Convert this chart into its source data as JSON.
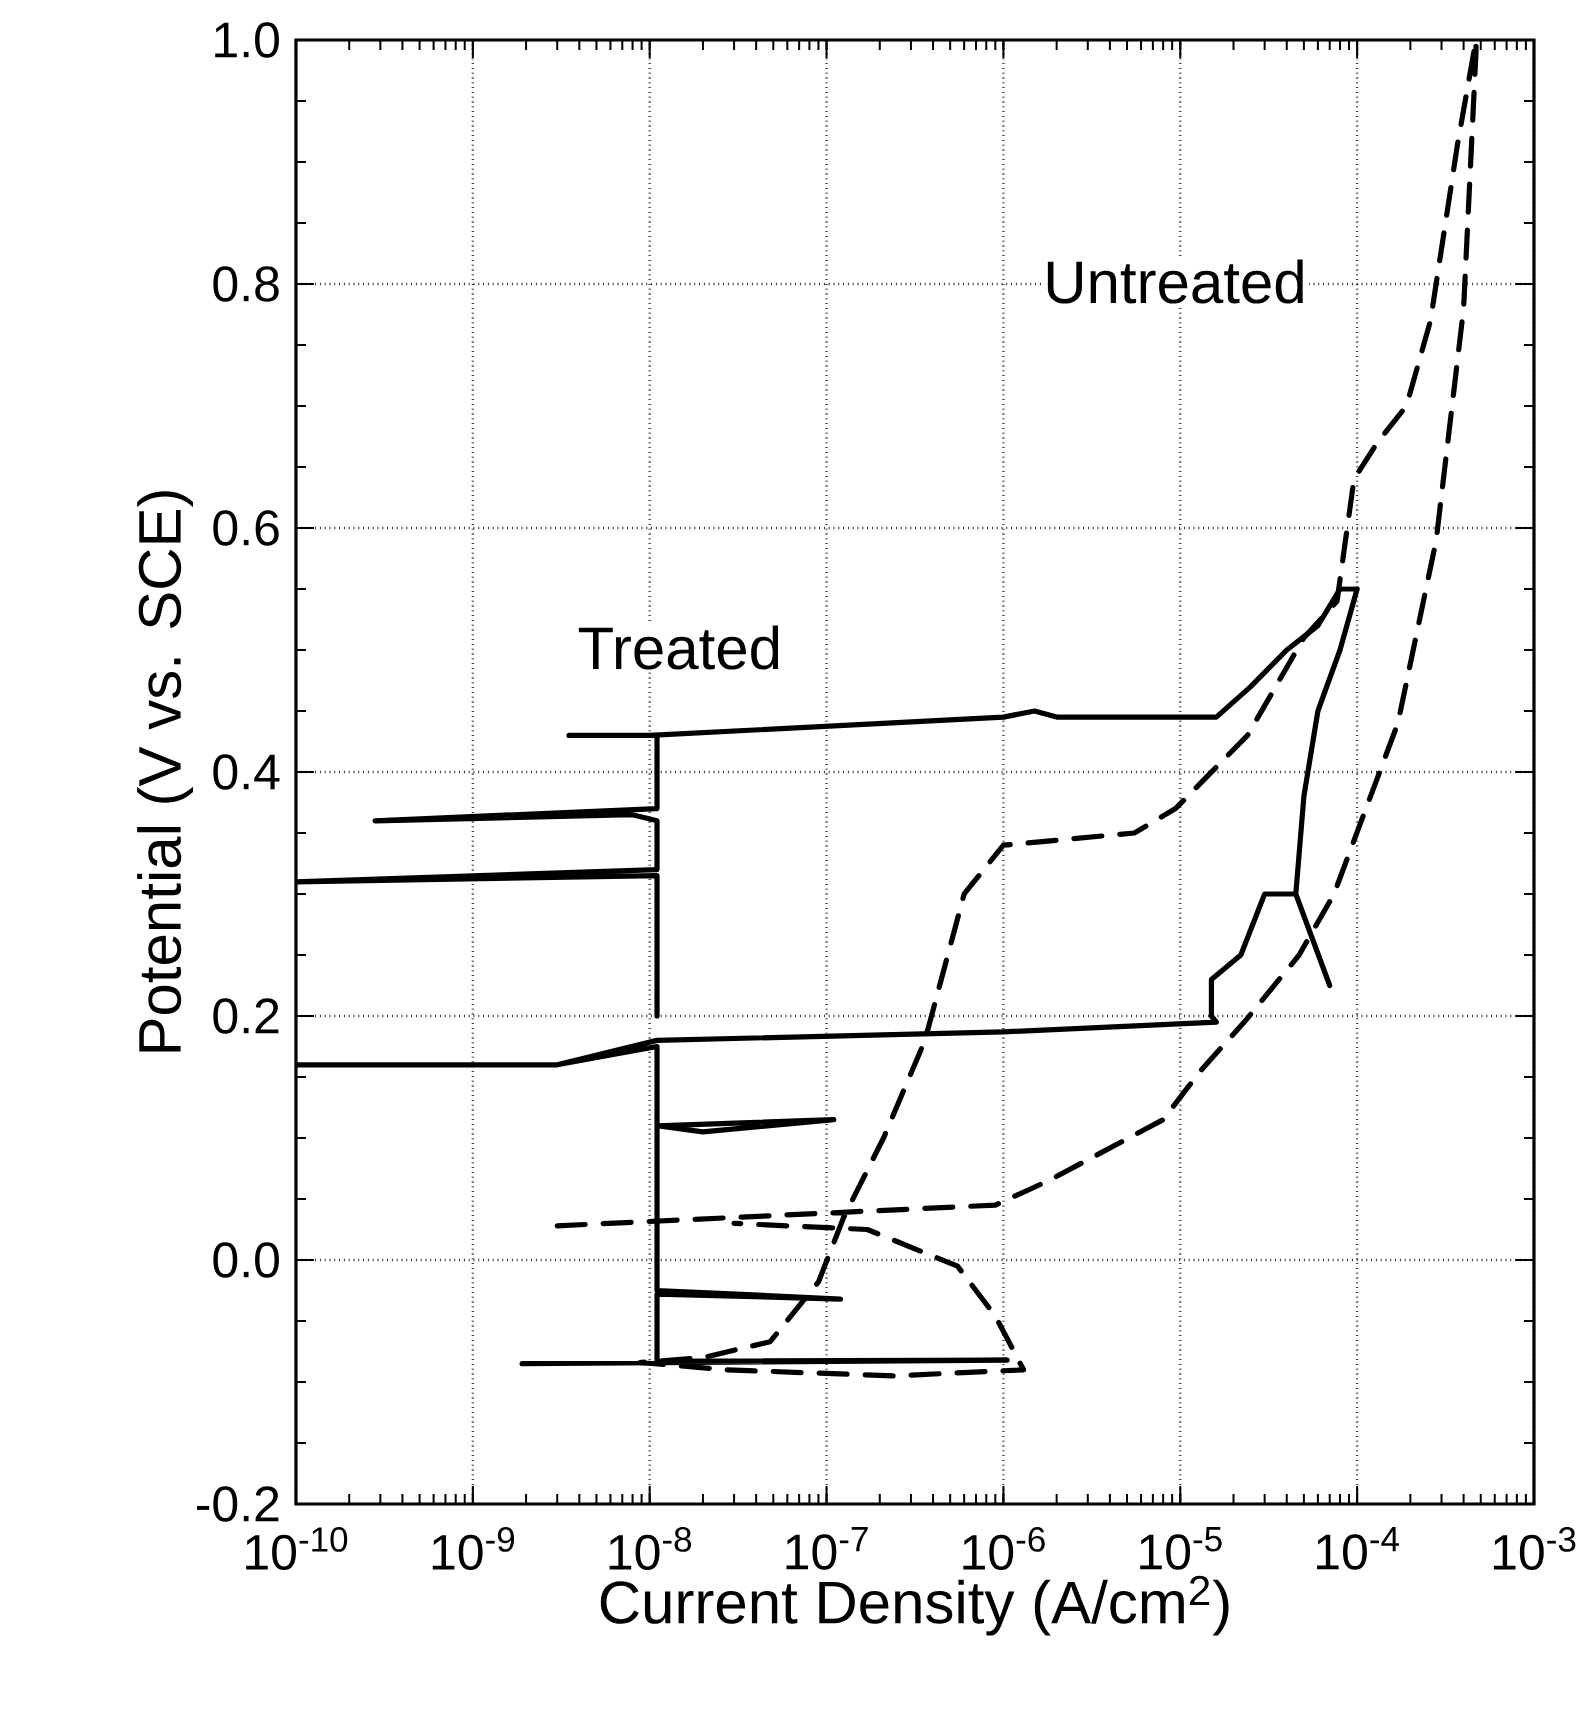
{
  "chart_data": {
    "type": "line",
    "xlabel": "Current Density (A/cm$^{2}$)",
    "ylabel": "Potential (V vs. SCE)",
    "log": "x",
    "grid": true,
    "xlim": [
      1e-10,
      0.001
    ],
    "ylim": [
      -0.2,
      1.0
    ],
    "xticks": [
      {
        "value": 1e-10,
        "label": "10$^{-10}$"
      },
      {
        "value": 1e-09,
        "label": "10$^{-9}$"
      },
      {
        "value": 1e-08,
        "label": "10$^{-8}$"
      },
      {
        "value": 1e-07,
        "label": "10$^{-7}$"
      },
      {
        "value": 1e-06,
        "label": "10$^{-6}$"
      },
      {
        "value": 1e-05,
        "label": "10$^{-5}$"
      },
      {
        "value": 0.0001,
        "label": "10$^{-4}$"
      },
      {
        "value": 0.001,
        "label": "10$^{-3}$"
      }
    ],
    "yticks": [
      {
        "value": -0.2,
        "label": "-0.2"
      },
      {
        "value": 0.0,
        "label": "0.0"
      },
      {
        "value": 0.2,
        "label": "0.2"
      },
      {
        "value": 0.4,
        "label": "0.4"
      },
      {
        "value": 0.6,
        "label": "0.6"
      },
      {
        "value": 0.8,
        "label": "0.8"
      },
      {
        "value": 1.0,
        "label": "1.0"
      }
    ],
    "series": [
      {
        "name": "Treated",
        "color": "#000000",
        "line_style": "solid",
        "x": [
          1.9e-09,
          1.05e-06,
          1.1e-08,
          1.1e-08,
          1.2e-07,
          1.1e-08,
          1.1e-08,
          1.1e-07,
          2e-08,
          1.1e-08,
          1.1e-08,
          3e-09,
          1e-10,
          3e-09,
          1.1e-08,
          1e-06,
          1.6e-05,
          1.5e-05,
          1.5e-05,
          2.2e-05,
          3e-05,
          4.5e-05,
          7e-05,
          4.5e-05,
          5e-05,
          6e-05,
          8e-05,
          0.0001,
          8e-05,
          6e-05,
          4e-05,
          2.5e-05,
          1.6e-05,
          2e-06,
          1.5e-06,
          1e-06,
          1e-08,
          3.5e-09,
          1.1e-08,
          1.1e-08,
          2.8e-10,
          8e-09,
          1.1e-08,
          1.1e-08,
          1e-10,
          1.1e-08,
          1.1e-08
        ],
        "values": [
          -0.085,
          -0.082,
          -0.083,
          -0.028,
          -0.032,
          -0.025,
          0.11,
          0.115,
          0.105,
          0.11,
          0.175,
          0.16,
          0.16,
          0.16,
          0.18,
          0.187,
          0.195,
          0.2,
          0.23,
          0.25,
          0.3,
          0.3,
          0.225,
          0.3,
          0.38,
          0.45,
          0.5,
          0.55,
          0.55,
          0.52,
          0.5,
          0.47,
          0.445,
          0.445,
          0.45,
          0.445,
          0.43,
          0.43,
          0.43,
          0.37,
          0.36,
          0.365,
          0.36,
          0.32,
          0.31,
          0.315,
          0.2
        ]
      },
      {
        "name": "Untreated",
        "color": "#000000",
        "line_style": "dashed",
        "x": [
          3e-09,
          9e-07,
          1.8e-06,
          8e-06,
          1.3e-05,
          2.3e-05,
          4.7e-05,
          7.4e-05,
          0.00017,
          0.00028,
          0.0004,
          0.00047,
          0.00047,
          0.00037,
          0.00026,
          0.00019,
          0.00013,
          9.6e-05,
          7.7e-05,
          5e-05,
          2.4e-05,
          9.4e-06,
          5.5e-06,
          1e-06,
          6e-07,
          3.6e-07,
          2.1e-07,
          1.25e-07,
          9e-08,
          4.8e-08,
          2e-08,
          8.8e-09,
          2.7e-08,
          2.4e-07,
          1.3e-06,
          9e-07,
          5.5e-07,
          1.7e-07,
          3e-08
        ],
        "values": [
          0.028,
          0.045,
          0.065,
          0.115,
          0.155,
          0.195,
          0.25,
          0.3,
          0.44,
          0.59,
          0.78,
          0.99,
          1.0,
          0.915,
          0.77,
          0.7,
          0.67,
          0.64,
          0.54,
          0.51,
          0.43,
          0.37,
          0.35,
          0.34,
          0.3,
          0.18,
          0.1,
          0.035,
          -0.018,
          -0.067,
          -0.08,
          -0.084,
          -0.09,
          -0.095,
          -0.09,
          -0.046,
          -0.005,
          0.025,
          0.03
        ]
      }
    ]
  }
}
